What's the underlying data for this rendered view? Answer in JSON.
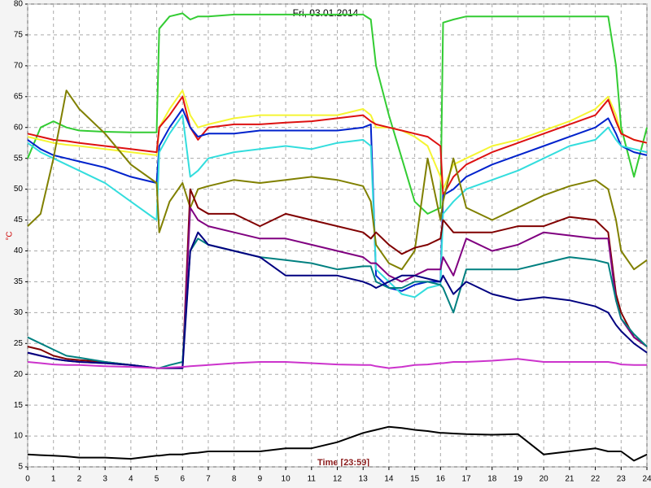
{
  "chart_data": {
    "type": "line",
    "title": "Fri, 03.01.2014",
    "x_label": "Time [23:59]",
    "y_label": "°C",
    "grid": true,
    "xlim": [
      0,
      24
    ],
    "ylim": [
      5,
      80
    ],
    "xticks": [
      0,
      1,
      2,
      3,
      4,
      5,
      6,
      7,
      8,
      9,
      10,
      11,
      12,
      13,
      14,
      15,
      16,
      17,
      18,
      19,
      20,
      21,
      22,
      23,
      24
    ],
    "yticks": [
      5,
      10,
      15,
      20,
      25,
      30,
      35,
      40,
      45,
      50,
      55,
      60,
      65,
      70,
      75,
      80
    ],
    "x": [
      0,
      0.5,
      1,
      1.5,
      2,
      3,
      4,
      5,
      5.1,
      5.5,
      6,
      6.3,
      6.6,
      7,
      8,
      9,
      10,
      11,
      12,
      13,
      13.3,
      13.5,
      14,
      14.5,
      15,
      15.5,
      16,
      16.1,
      16.5,
      17,
      18,
      19,
      20,
      21,
      22,
      22.5,
      22.8,
      23,
      23.5,
      24
    ],
    "series": [
      {
        "color": "#33cc33",
        "values": [
          55,
          60,
          61,
          60,
          59.5,
          59.3,
          59.2,
          59.2,
          76,
          78,
          78.5,
          77.5,
          78,
          78,
          78.3,
          78.3,
          78.3,
          78.3,
          78.3,
          78.3,
          77.5,
          70,
          62,
          55,
          48,
          46,
          47,
          77,
          77.5,
          78,
          78,
          78,
          78,
          78,
          78,
          78,
          70,
          60,
          52,
          60
        ]
      },
      {
        "color": "#f5f533",
        "values": [
          58.5,
          58,
          57.5,
          57.2,
          57,
          56.5,
          56,
          55.5,
          60,
          63,
          66,
          62,
          60,
          60.5,
          61.5,
          62,
          62,
          62,
          62,
          63,
          62,
          60,
          60,
          59.5,
          58.5,
          57,
          52,
          50,
          54,
          55,
          57,
          58,
          59.5,
          61,
          63,
          65,
          62,
          59,
          58,
          57.5
        ]
      },
      {
        "color": "#dd1111",
        "values": [
          59,
          58.5,
          58,
          57.8,
          57.5,
          57,
          56.5,
          56,
          60,
          62,
          65,
          60,
          58,
          60,
          60.5,
          60.5,
          60.8,
          61,
          61.5,
          62,
          61,
          60.5,
          60,
          59.5,
          59,
          58.5,
          57,
          49,
          52,
          54,
          56,
          57.5,
          59,
          60.5,
          62,
          64.5,
          61,
          59,
          58,
          57.5
        ]
      },
      {
        "color": "#0022cc",
        "values": [
          58,
          56.5,
          55.5,
          55,
          54.5,
          53.5,
          52,
          51,
          57,
          60,
          63,
          60,
          58.5,
          59,
          59,
          59.5,
          59.5,
          59.5,
          59.5,
          60,
          60.5,
          36,
          34,
          33.5,
          34.5,
          35,
          35,
          49,
          50,
          52,
          54,
          55.5,
          57,
          58.5,
          60,
          61.5,
          59,
          57,
          56,
          55.5
        ]
      },
      {
        "color": "#33dddd",
        "values": [
          57.5,
          56,
          55,
          54,
          53,
          51,
          48,
          45,
          56,
          59,
          62,
          52,
          53,
          55,
          56,
          56.5,
          57,
          56.5,
          57.5,
          58,
          57,
          37,
          35,
          33,
          32.5,
          34,
          34.5,
          46,
          48,
          50,
          51.5,
          53,
          55,
          57,
          58,
          60,
          58,
          57,
          56.5,
          56
        ]
      },
      {
        "color": "#808000",
        "values": [
          44,
          46,
          55,
          66,
          63,
          59,
          54,
          51,
          43,
          48,
          51,
          47,
          50,
          50.5,
          51.5,
          51,
          51.5,
          52,
          51.5,
          50.5,
          48,
          41,
          38,
          37,
          40,
          55,
          45,
          48,
          55,
          47,
          45,
          47,
          49,
          50.5,
          51.5,
          50,
          45,
          40,
          37,
          38.5
        ]
      },
      {
        "color": "#800000",
        "values": [
          24.5,
          24,
          23,
          22.5,
          22.3,
          22,
          21.5,
          21,
          21,
          21,
          21,
          50,
          47,
          46,
          46,
          44,
          46,
          45,
          44,
          43,
          42,
          43,
          41,
          39.5,
          40.5,
          41,
          42,
          45,
          43,
          43,
          43,
          44,
          44,
          45.5,
          45,
          43,
          33,
          30,
          26,
          24.5
        ]
      },
      {
        "color": "#800080",
        "values": [
          23.5,
          23,
          22.5,
          22.2,
          22,
          21.8,
          21.5,
          21,
          21,
          21,
          21,
          47,
          45,
          44,
          43,
          42,
          42,
          41,
          40,
          39,
          38,
          38,
          36,
          35,
          36,
          37,
          37,
          39,
          36,
          42,
          40,
          41,
          43,
          42.5,
          42,
          42,
          32,
          29,
          26,
          24.5
        ]
      },
      {
        "color": "#008080",
        "values": [
          26,
          25,
          24,
          23,
          22.7,
          22,
          21.5,
          21,
          21,
          21.5,
          22,
          40,
          42,
          41,
          40,
          39,
          38.5,
          38,
          37,
          37.5,
          37.5,
          35,
          34,
          34,
          35,
          35,
          34.5,
          34,
          30,
          37,
          37,
          37,
          38,
          39,
          38.5,
          38,
          32,
          29,
          26.5,
          24.5
        ]
      },
      {
        "color": "#000080",
        "values": [
          23.5,
          23,
          22.5,
          22.2,
          22,
          21.8,
          21.5,
          21,
          21,
          21,
          21,
          40,
          43,
          41,
          40,
          39,
          36,
          36,
          36,
          35,
          34.5,
          34,
          35,
          36,
          36,
          35.5,
          35,
          36,
          33,
          35,
          33,
          32,
          32.5,
          32,
          31,
          30,
          28,
          27,
          25,
          23.5
        ]
      },
      {
        "color": "#cc33cc",
        "values": [
          22,
          21.8,
          21.6,
          21.5,
          21.5,
          21.3,
          21.2,
          21,
          21,
          21.1,
          21.2,
          21.3,
          21.4,
          21.5,
          21.8,
          22,
          22,
          21.8,
          21.6,
          21.5,
          21.5,
          21.3,
          21,
          21.2,
          21.5,
          21.6,
          21.8,
          21.8,
          22,
          22,
          22.2,
          22.5,
          22,
          22,
          22,
          22,
          21.8,
          21.6,
          21.5,
          21.5
        ]
      },
      {
        "color": "#000000",
        "values": [
          7,
          6.9,
          6.8,
          6.7,
          6.5,
          6.5,
          6.3,
          6.8,
          6.8,
          7,
          7,
          7.2,
          7.3,
          7.5,
          7.5,
          7.5,
          8,
          8,
          9,
          10.5,
          10.8,
          11,
          11.5,
          11.3,
          11,
          10.8,
          10.5,
          10.5,
          10.4,
          10.3,
          10.2,
          10.3,
          7,
          7.5,
          8,
          7.5,
          7.5,
          7.5,
          6,
          7
        ]
      }
    ]
  }
}
